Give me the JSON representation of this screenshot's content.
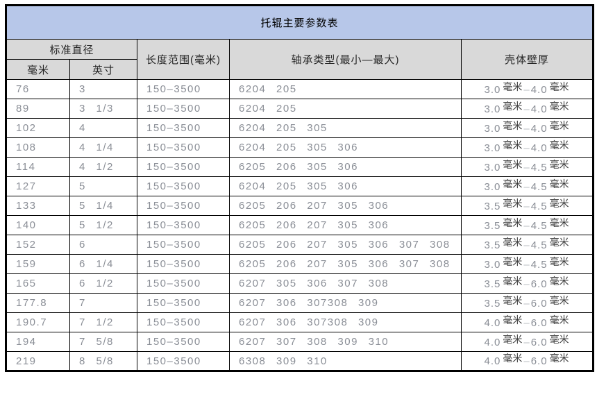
{
  "title": "托辊主要参数表",
  "colors": {
    "title_bg": "#b7c7e9",
    "header_bg": "#d9d9d9",
    "grid_border": "#000000",
    "body_number_text": "#8a8e96",
    "unit_text": "#3a3a3a"
  },
  "table": {
    "headers": {
      "standard_diameter": "标准直径",
      "mm": "毫米",
      "inch": "英寸",
      "length_range": "长度范围(毫米)",
      "bearing_type": "轴承类型(最小—最大)",
      "wall_thickness": "壳体壁厚"
    },
    "unit_label": "毫米",
    "range_separator": "–",
    "rows": [
      {
        "mm": "76",
        "inch": "3",
        "length": "150–3500",
        "bearings": "6204 205",
        "wall_min": "3.0",
        "wall_max": "4.0"
      },
      {
        "mm": "89",
        "inch": "3 1/3",
        "length": "150–3500",
        "bearings": "6204 205",
        "wall_min": "3.0",
        "wall_max": "4.0"
      },
      {
        "mm": "102",
        "inch": "4",
        "length": "150–3500",
        "bearings": "6204 205 305",
        "wall_min": "3.0",
        "wall_max": "4.0"
      },
      {
        "mm": "108",
        "inch": "4 1/4",
        "length": "150–3500",
        "bearings": "6204 205 305 306",
        "wall_min": "3.0",
        "wall_max": "4.0"
      },
      {
        "mm": "114",
        "inch": "4 1/2",
        "length": "150–3500",
        "bearings": "6205 206 305 306",
        "wall_min": "3.0",
        "wall_max": "4.5"
      },
      {
        "mm": "127",
        "inch": "5",
        "length": "150–3500",
        "bearings": "6204 205 305 306",
        "wall_min": "3.0",
        "wall_max": "4.5"
      },
      {
        "mm": "133",
        "inch": "5 1/4",
        "length": "150–3500",
        "bearings": "6205 206 207 305 306",
        "wall_min": "3.5",
        "wall_max": "4.5"
      },
      {
        "mm": "140",
        "inch": "5 1/2",
        "length": "150–3500",
        "bearings": "6205 206 207 305 306",
        "wall_min": "3.5",
        "wall_max": "4.5"
      },
      {
        "mm": "152",
        "inch": "6",
        "length": "150–3500",
        "bearings": "6205 206 207 305 306 307 308",
        "wall_min": "3.5",
        "wall_max": "4.5"
      },
      {
        "mm": "159",
        "inch": "6 1/4",
        "length": "150–3500",
        "bearings": "6205 206 207 305 306 307 308",
        "wall_min": "3.0",
        "wall_max": "4.5"
      },
      {
        "mm": "165",
        "inch": "6 1/2",
        "length": "150–3500",
        "bearings": "6207 305 306 307 308",
        "wall_min": "3.5",
        "wall_max": "6.0"
      },
      {
        "mm": "177.8",
        "inch": "7",
        "length": "150–3500",
        "bearings": "6207 306 307308 309",
        "wall_min": "3.5",
        "wall_max": "6.0"
      },
      {
        "mm": "190.7",
        "inch": "7 1/2",
        "length": "150–3500",
        "bearings": "6207 306 307308 309",
        "wall_min": "4.0",
        "wall_max": "6.0"
      },
      {
        "mm": "194",
        "inch": "7 5/8",
        "length": "150–3500",
        "bearings": "6207 307 308 309 310",
        "wall_min": "4.0",
        "wall_max": "6.0"
      },
      {
        "mm": "219",
        "inch": "8 5/8",
        "length": "150–3500",
        "bearings": "6308 309 310",
        "wall_min": "4.0",
        "wall_max": "6.0"
      }
    ]
  }
}
